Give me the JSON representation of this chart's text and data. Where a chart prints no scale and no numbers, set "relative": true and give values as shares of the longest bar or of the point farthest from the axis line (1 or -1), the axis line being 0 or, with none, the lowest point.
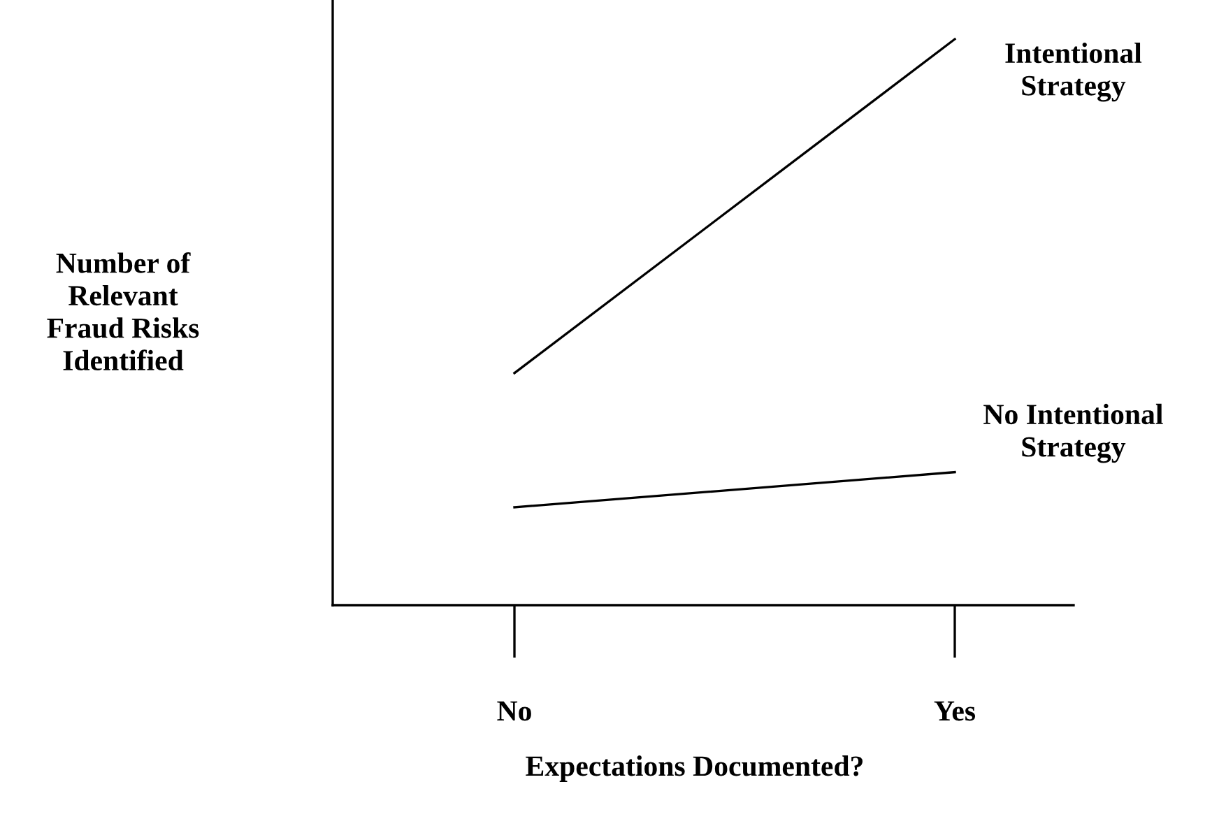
{
  "chart_data": {
    "type": "line",
    "relative": true,
    "xlabel": "Expectations Documented?",
    "ylabel": "Number of Relevant Fraud Risks Identified",
    "categories": [
      "No",
      "Yes"
    ],
    "series": [
      {
        "name": "Intentional Strategy",
        "color": "#000000",
        "values": [
          0.41,
          1
        ]
      },
      {
        "name": "No Intentional Strategy",
        "color": "#000000",
        "values": [
          0.173,
          0.235
        ]
      }
    ],
    "grid": false,
    "legend": false,
    "marker": "none",
    "line_style": "solid"
  }
}
